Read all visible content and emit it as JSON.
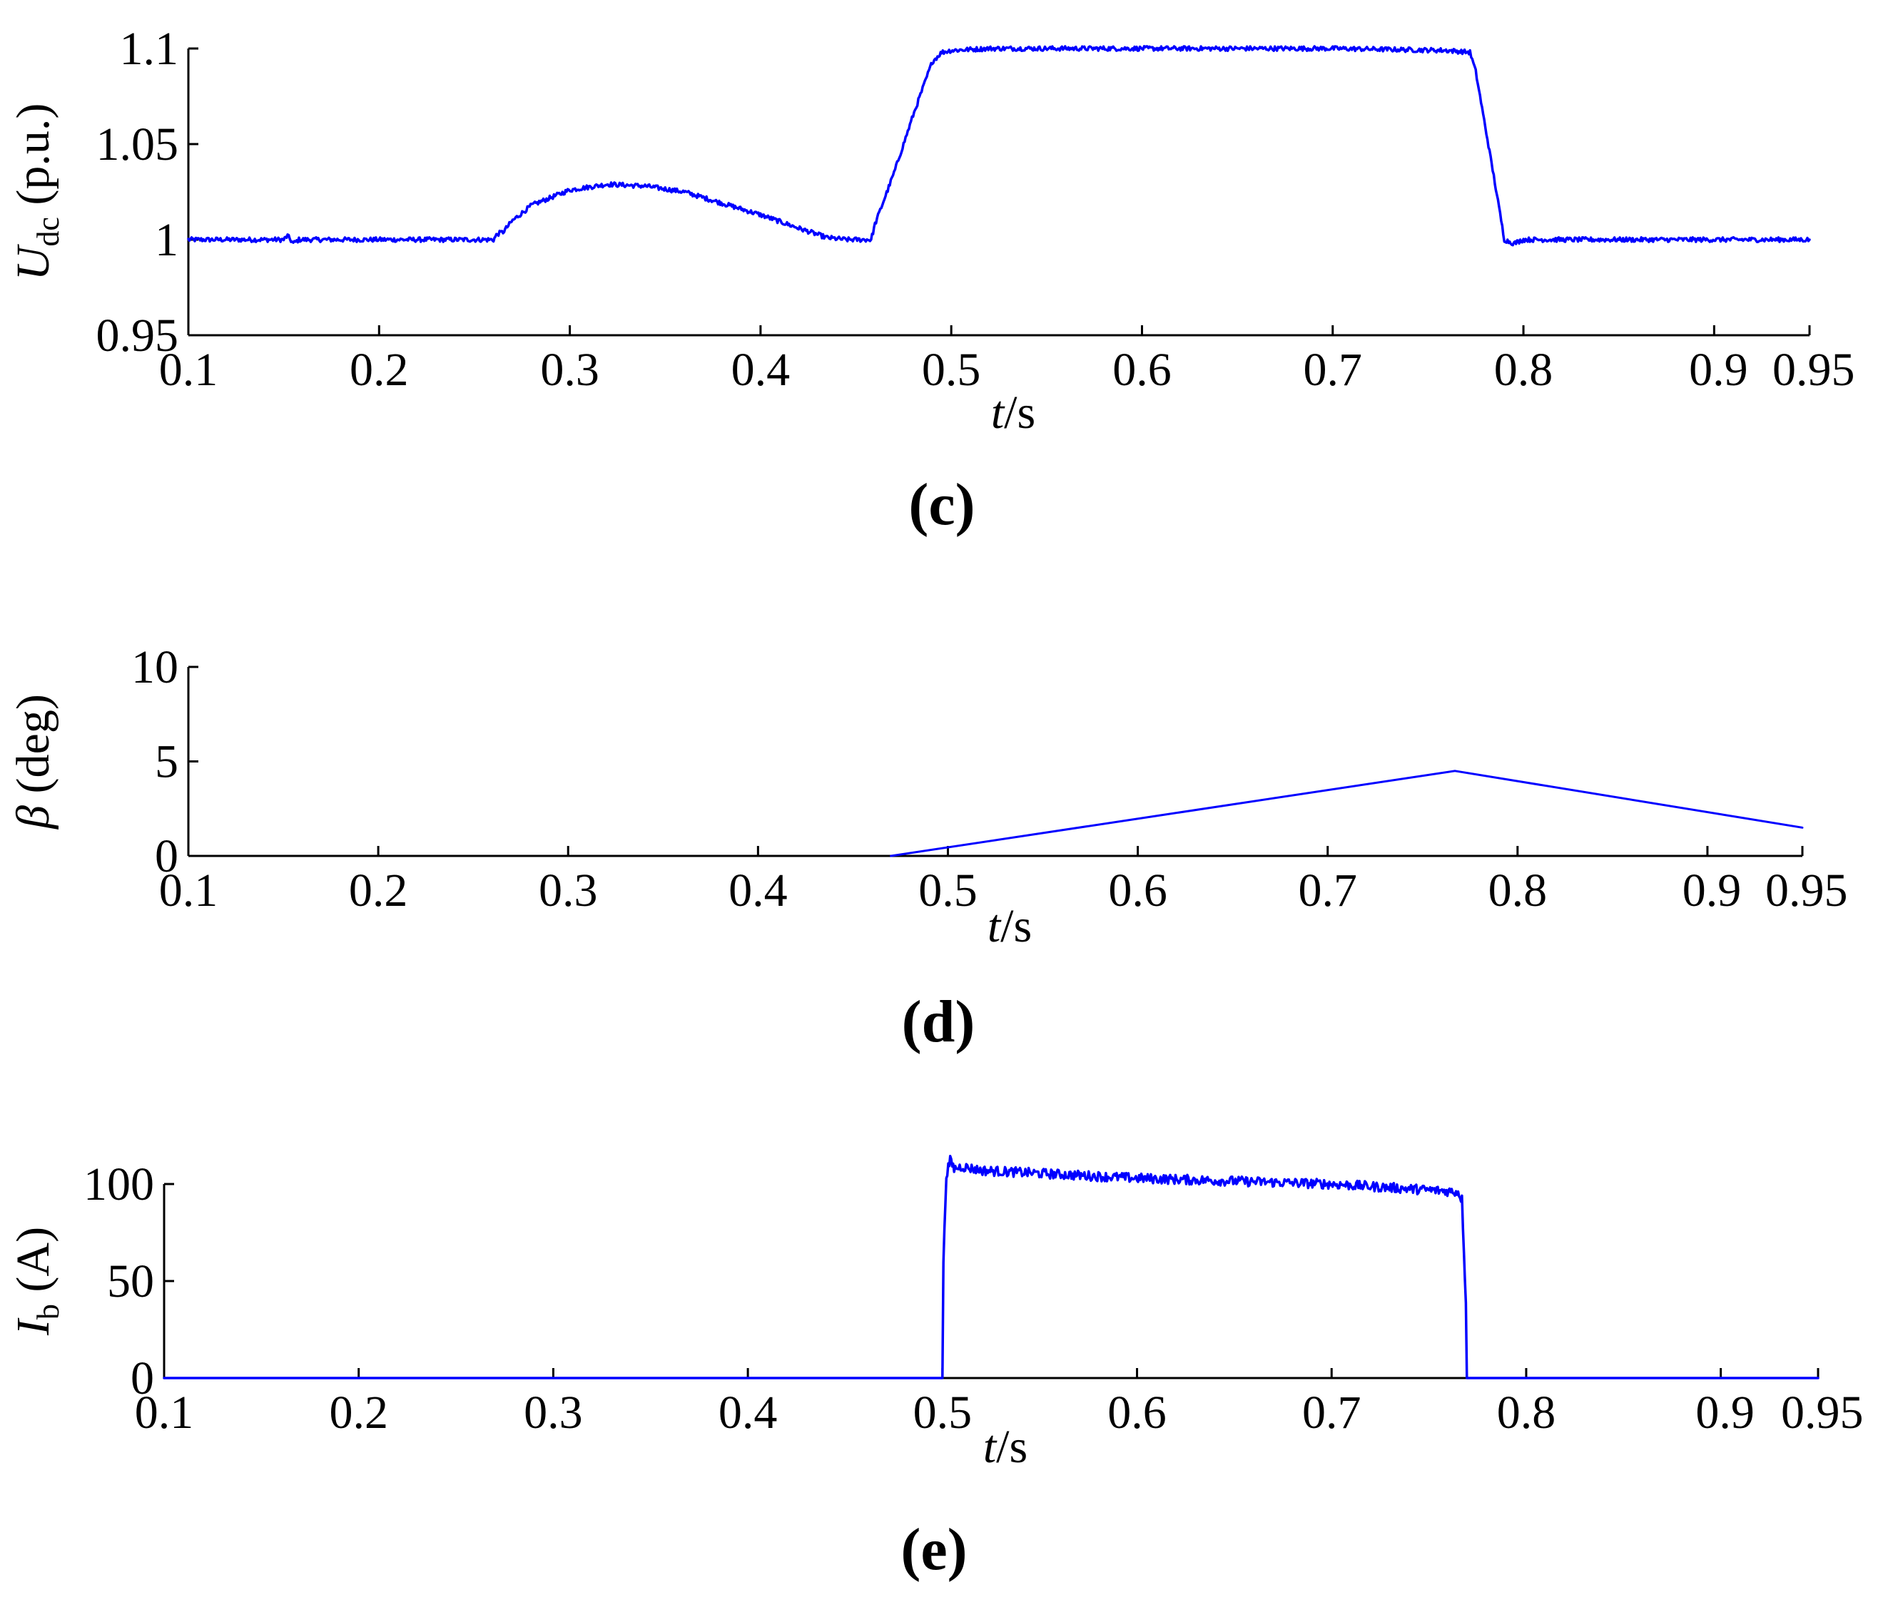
{
  "figure": {
    "background": "#ffffff",
    "series_color": "#0000ff"
  },
  "chart_data": [
    {
      "type": "line",
      "panel_label": "(c)",
      "xlabel": {
        "italic": "t",
        "rest": "/s"
      },
      "ylabel": {
        "main": "U",
        "sub": "dc",
        "rest": " (p.u.)"
      },
      "xlim": [
        0.1,
        0.95
      ],
      "ylim": [
        0.95,
        1.1
      ],
      "xticks": [
        0.1,
        0.2,
        0.3,
        0.4,
        0.5,
        0.6,
        0.7,
        0.8,
        0.9,
        0.95
      ],
      "xtick_labels": [
        "0.1",
        "0.2",
        "0.3",
        "0.4",
        "0.5",
        "0.6",
        "0.7",
        "0.8",
        "0.9",
        "0.95"
      ],
      "yticks": [
        0.95,
        1,
        1.05,
        1.1
      ],
      "ytick_labels": [
        "0.95",
        "1",
        "1.05",
        "1.1"
      ],
      "grid": false,
      "noise": 0.0012,
      "series": [
        {
          "x": [
            0.1,
            0.15,
            0.152,
            0.155,
            0.158,
            0.2,
            0.26,
            0.262,
            0.265,
            0.27,
            0.28,
            0.3,
            0.32,
            0.34,
            0.36,
            0.38,
            0.4,
            0.42,
            0.435,
            0.445,
            0.458,
            0.46,
            0.47,
            0.48,
            0.49,
            0.495,
            0.5,
            0.52,
            0.6,
            0.7,
            0.76,
            0.772,
            0.775,
            0.785,
            0.79,
            0.795,
            0.8,
            0.9,
            0.95
          ],
          "y": [
            1.0,
            1.0,
            1.002,
            0.998,
            1.0,
            1.0,
            1.0,
            1.003,
            1.004,
            1.01,
            1.018,
            1.026,
            1.029,
            1.028,
            1.025,
            1.019,
            1.013,
            1.006,
            1.001,
            1.0,
            1.0,
            1.008,
            1.035,
            1.065,
            1.093,
            1.098,
            1.099,
            1.1,
            1.1,
            1.1,
            1.099,
            1.098,
            1.088,
            1.03,
            1.0,
            0.998,
            1.0,
            1.0,
            1.0
          ]
        }
      ]
    },
    {
      "type": "line",
      "panel_label": "(d)",
      "xlabel": {
        "italic": "t",
        "rest": "/s"
      },
      "ylabel": {
        "main": "β",
        "sub": "",
        "rest": " (deg)"
      },
      "xlim": [
        0.1,
        0.95
      ],
      "ylim": [
        0,
        10
      ],
      "xticks": [
        0.1,
        0.2,
        0.3,
        0.4,
        0.5,
        0.6,
        0.7,
        0.8,
        0.9,
        0.95
      ],
      "xtick_labels": [
        "0.1",
        "0.2",
        "0.3",
        "0.4",
        "0.5",
        "0.6",
        "0.7",
        "0.8",
        "0.9",
        "0.95"
      ],
      "yticks": [
        0,
        5,
        10
      ],
      "ytick_labels": [
        "0",
        "5",
        "10"
      ],
      "grid": false,
      "noise": 0,
      "series": [
        {
          "x": [
            0.47,
            0.767,
            0.95
          ],
          "y": [
            0.0,
            4.5,
            1.5
          ]
        }
      ]
    },
    {
      "type": "line",
      "panel_label": "(e)",
      "xlabel": {
        "italic": "t",
        "rest": "/s"
      },
      "ylabel": {
        "main": "I",
        "sub": "b",
        "rest": " (A)"
      },
      "xlim": [
        0.1,
        0.95
      ],
      "ylim": [
        0,
        100
      ],
      "xticks": [
        0.1,
        0.2,
        0.3,
        0.4,
        0.5,
        0.6,
        0.7,
        0.8,
        0.9,
        0.95
      ],
      "xtick_labels": [
        "0.1",
        "0.2",
        "0.3",
        "0.4",
        "0.5",
        "0.6",
        "0.7",
        "0.8",
        "0.9",
        "0.95"
      ],
      "yticks": [
        0,
        50,
        100
      ],
      "ytick_labels": [
        "0",
        "50",
        "100"
      ],
      "grid": false,
      "noise": 2.5,
      "series": [
        {
          "x": [
            0.1,
            0.5,
            0.5005,
            0.502,
            0.504,
            0.506,
            0.51,
            0.52,
            0.6,
            0.7,
            0.765,
            0.767,
            0.769,
            0.7695,
            0.95
          ],
          "y": [
            0,
            0,
            60,
            105,
            112,
            108,
            109,
            107,
            103,
            100,
            96,
            92,
            40,
            0,
            0
          ]
        }
      ]
    }
  ]
}
